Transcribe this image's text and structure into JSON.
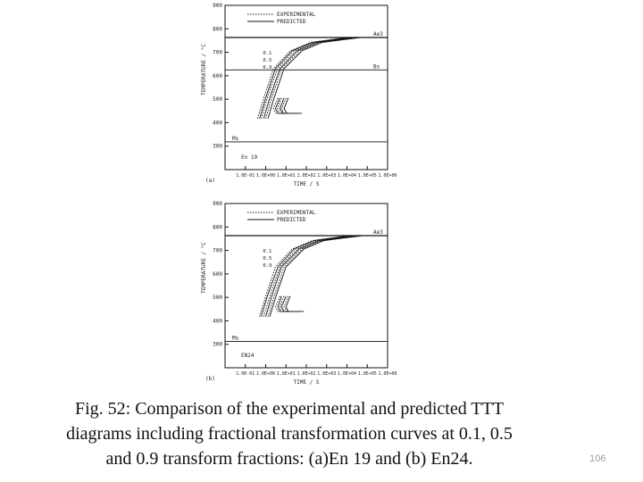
{
  "caption": {
    "line1": "Fig. 52: Comparison of  the experimental and predicted  TTT",
    "line2": "diagrams including fractional transformation curves  at 0.1, 0.5",
    "line3": "and 0.9 transform fractions: (a)En 19 and (b) En24."
  },
  "page_number": "106",
  "chart_data": [
    {
      "type": "line",
      "panel_label": "(a)",
      "steel_label": "En 19",
      "xlabel": "TIME / S",
      "ylabel": "TEMPERATURE / °C",
      "x_scale": "log",
      "xlim": [
        0.01,
        1000000
      ],
      "ylim": [
        200,
        900
      ],
      "x_ticks": [
        "1.0E-01",
        "1.0E+00",
        "1.0E+01",
        "1.0E+02",
        "1.0E+03",
        "1.0E+04",
        "1.0E+05",
        "1.0E+06"
      ],
      "x_tick_values": [
        0.1,
        1,
        10,
        100,
        1000,
        10000,
        100000,
        1000000
      ],
      "y_ticks": [
        "900",
        "800",
        "700",
        "600",
        "500",
        "400",
        "300"
      ],
      "y_tick_values": [
        900,
        800,
        700,
        600,
        500,
        400,
        300
      ],
      "legend": [
        {
          "label": "EXPERIMENTAL",
          "style": "dotted"
        },
        {
          "label": "PREDICTED",
          "style": "solid"
        }
      ],
      "legend_position": "top",
      "fraction_labels": [
        "0.1",
        "0.5",
        "0.9"
      ],
      "reference_lines": [
        {
          "label": "Ae3",
          "y": 763
        },
        {
          "label": "Bs",
          "y": 625
        },
        {
          "label": "Ms",
          "y": 318
        }
      ],
      "series": [
        {
          "fraction": 0.1,
          "type": "predicted",
          "points": [
            [
              0.5,
              418
            ],
            [
              1.0,
              505
            ],
            [
              3,
              630
            ],
            [
              20,
              706
            ],
            [
              200,
              742
            ],
            [
              10000,
              762
            ]
          ],
          "bainite": [
            [
              5,
              505
            ],
            [
              3,
              460
            ],
            [
              4,
              440
            ],
            [
              20,
              440
            ]
          ]
        },
        {
          "fraction": 0.5,
          "type": "predicted",
          "points": [
            [
              0.8,
              418
            ],
            [
              1.6,
              505
            ],
            [
              5,
              630
            ],
            [
              35,
              706
            ],
            [
              350,
              742
            ],
            [
              20000,
              762
            ]
          ],
          "bainite": [
            [
              8,
              505
            ],
            [
              5,
              460
            ],
            [
              7,
              440
            ],
            [
              35,
              440
            ]
          ]
        },
        {
          "fraction": 0.9,
          "type": "predicted",
          "points": [
            [
              1.3,
              418
            ],
            [
              2.6,
              505
            ],
            [
              8,
              630
            ],
            [
              60,
              706
            ],
            [
              600,
              742
            ],
            [
              40000,
              762
            ]
          ],
          "bainite": [
            [
              13,
              505
            ],
            [
              8,
              460
            ],
            [
              11,
              440
            ],
            [
              60,
              440
            ]
          ]
        },
        {
          "fraction": 0.1,
          "type": "experimental",
          "points": [
            [
              0.4,
              418
            ],
            [
              0.8,
              505
            ],
            [
              2.4,
              630
            ],
            [
              16,
              706
            ],
            [
              160,
              742
            ],
            [
              8000,
              762
            ]
          ],
          "bainite": [
            [
              4,
              505
            ],
            [
              2.4,
              460
            ],
            [
              3.2,
              440
            ],
            [
              16,
              440
            ]
          ]
        },
        {
          "fraction": 0.5,
          "type": "experimental",
          "points": [
            [
              0.6,
              418
            ],
            [
              1.2,
              505
            ],
            [
              3.8,
              630
            ],
            [
              26,
              706
            ],
            [
              260,
              742
            ],
            [
              15000,
              762
            ]
          ],
          "bainite": [
            [
              6,
              505
            ],
            [
              3.8,
              460
            ],
            [
              5,
              440
            ],
            [
              26,
              440
            ]
          ]
        },
        {
          "fraction": 0.9,
          "type": "experimental",
          "points": [
            [
              1.0,
              418
            ],
            [
              2.0,
              505
            ],
            [
              6,
              630
            ],
            [
              45,
              706
            ],
            [
              450,
              742
            ],
            [
              30000,
              762
            ]
          ],
          "bainite": [
            [
              10,
              505
            ],
            [
              6,
              460
            ],
            [
              8,
              440
            ],
            [
              45,
              440
            ]
          ]
        }
      ],
      "grid": false
    },
    {
      "type": "line",
      "panel_label": "(b)",
      "steel_label": "EN24",
      "xlabel": "TIME / S",
      "ylabel": "TEMPERATURE / °C",
      "x_scale": "log",
      "xlim": [
        0.01,
        1000000
      ],
      "ylim": [
        200,
        900
      ],
      "x_ticks": [
        "1.0E-01",
        "1.0E+00",
        "1.0E+01",
        "1.0E+02",
        "1.0E+03",
        "1.0E+04",
        "1.0E+05",
        "1.0E+06"
      ],
      "x_tick_values": [
        0.1,
        1,
        10,
        100,
        1000,
        10000,
        100000,
        1000000
      ],
      "y_ticks": [
        "900",
        "800",
        "700",
        "600",
        "500",
        "400",
        "300"
      ],
      "y_tick_values": [
        900,
        800,
        700,
        600,
        500,
        400,
        300
      ],
      "legend": [
        {
          "label": "EXPERIMENTAL",
          "style": "dotted"
        },
        {
          "label": "PREDICTED",
          "style": "solid"
        }
      ],
      "legend_position": "top",
      "fraction_labels": [
        "0.1",
        "0.5",
        "0.9"
      ],
      "reference_lines": [
        {
          "label": "Ae3",
          "y": 763
        },
        {
          "label": "Ms",
          "y": 312
        }
      ],
      "series": [
        {
          "fraction": 0.1,
          "type": "predicted",
          "points": [
            [
              0.6,
              418
            ],
            [
              1.2,
              505
            ],
            [
              4,
              630
            ],
            [
              25,
              706
            ],
            [
              250,
              742
            ],
            [
              12000,
              762
            ]
          ],
          "bainite": [
            [
              6,
              505
            ],
            [
              4,
              460
            ],
            [
              5,
              440
            ],
            [
              25,
              440
            ]
          ]
        },
        {
          "fraction": 0.5,
          "type": "predicted",
          "points": [
            [
              1.0,
              418
            ],
            [
              2.0,
              505
            ],
            [
              6,
              630
            ],
            [
              45,
              706
            ],
            [
              450,
              742
            ],
            [
              25000,
              762
            ]
          ],
          "bainite": [
            [
              10,
              505
            ],
            [
              6,
              460
            ],
            [
              8,
              440
            ],
            [
              45,
              440
            ]
          ]
        },
        {
          "fraction": 0.9,
          "type": "predicted",
          "points": [
            [
              1.6,
              418
            ],
            [
              3.2,
              505
            ],
            [
              10,
              630
            ],
            [
              75,
              706
            ],
            [
              750,
              742
            ],
            [
              50000,
              762
            ]
          ],
          "bainite": [
            [
              16,
              505
            ],
            [
              10,
              460
            ],
            [
              13,
              440
            ],
            [
              75,
              440
            ]
          ]
        },
        {
          "fraction": 0.1,
          "type": "experimental",
          "points": [
            [
              0.5,
              418
            ],
            [
              1.0,
              505
            ],
            [
              3,
              630
            ],
            [
              20,
              706
            ],
            [
              200,
              742
            ],
            [
              9000,
              762
            ]
          ],
          "bainite": [
            [
              5,
              505
            ],
            [
              3,
              460
            ],
            [
              4,
              440
            ],
            [
              20,
              440
            ]
          ]
        },
        {
          "fraction": 0.5,
          "type": "experimental",
          "points": [
            [
              0.8,
              418
            ],
            [
              1.6,
              505
            ],
            [
              5,
              630
            ],
            [
              35,
              706
            ],
            [
              350,
              742
            ],
            [
              18000,
              762
            ]
          ],
          "bainite": [
            [
              8,
              505
            ],
            [
              5,
              460
            ],
            [
              6,
              440
            ],
            [
              35,
              440
            ]
          ]
        },
        {
          "fraction": 0.9,
          "type": "experimental",
          "points": [
            [
              1.3,
              418
            ],
            [
              2.6,
              505
            ],
            [
              8,
              630
            ],
            [
              60,
              706
            ],
            [
              600,
              742
            ],
            [
              38000,
              762
            ]
          ],
          "bainite": [
            [
              13,
              505
            ],
            [
              8,
              460
            ],
            [
              11,
              440
            ],
            [
              60,
              440
            ]
          ]
        }
      ],
      "grid": false
    }
  ]
}
